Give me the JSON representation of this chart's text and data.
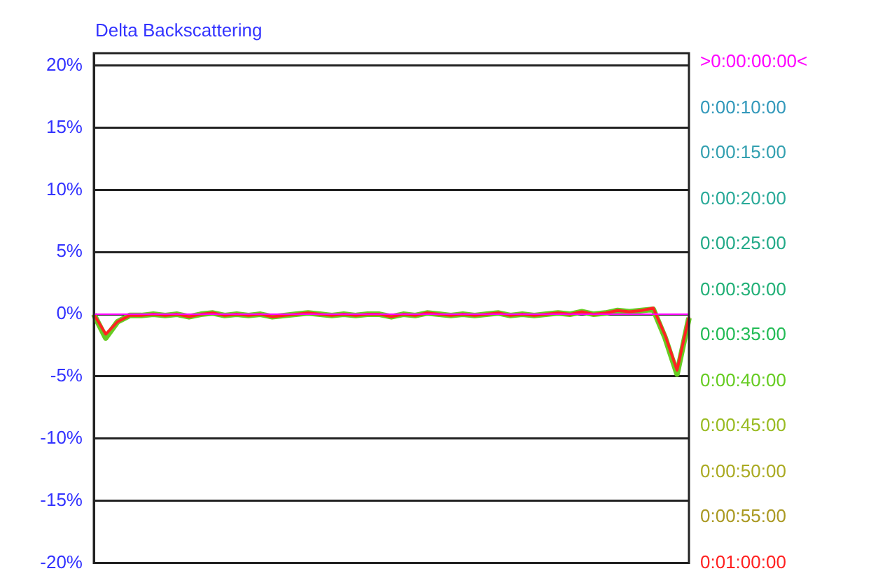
{
  "chart_data": {
    "type": "line",
    "title": "Delta Backscattering",
    "categories": [
      null,
      null,
      null,
      null,
      null,
      null,
      null,
      null,
      null,
      null,
      null,
      null,
      null,
      null,
      null,
      null,
      null,
      null,
      null,
      null,
      null,
      null,
      null,
      null,
      null,
      null,
      null,
      null,
      null,
      null,
      null,
      null,
      null,
      null,
      null,
      null,
      null,
      null,
      null,
      null,
      null,
      null,
      null,
      null,
      null,
      null,
      null,
      null,
      null,
      null,
      null
    ],
    "ylim": [
      -20,
      21
    ],
    "yticks": [
      {
        "value": -20,
        "label": "-20%"
      },
      {
        "value": -15,
        "label": "-15%"
      },
      {
        "value": -10,
        "label": "-10%"
      },
      {
        "value": -5,
        "label": "-5%"
      },
      {
        "value": 0,
        "label": "0%"
      },
      {
        "value": 5,
        "label": "5%"
      },
      {
        "value": 10,
        "label": "10%"
      },
      {
        "value": 15,
        "label": "15%"
      },
      {
        "value": 20,
        "label": "20%"
      }
    ],
    "grid": "y",
    "legend": "right",
    "tick_labels": "y",
    "marker": "none",
    "line_style": "solid",
    "series": [
      {
        "name": ">0:00:00:00<",
        "color": "#ff00ff",
        "values": [
          0,
          0,
          0,
          0,
          0,
          0,
          0,
          0,
          0,
          0,
          0,
          0,
          0,
          0,
          0,
          0,
          0,
          0,
          0,
          0,
          0,
          0,
          0,
          0,
          0,
          0,
          0,
          0,
          0,
          0,
          0,
          0,
          0,
          0,
          0,
          0,
          0,
          0,
          0,
          0,
          0,
          0,
          0,
          0,
          0,
          0,
          0,
          0,
          0,
          0,
          0
        ]
      },
      {
        "name": "0:00:10:00",
        "color": "#3399bb",
        "values": [
          null,
          null,
          null,
          null,
          null,
          null,
          null,
          null,
          null,
          null,
          null,
          null,
          null,
          null,
          null,
          null,
          null,
          null,
          null,
          null,
          null,
          null,
          null,
          null,
          null,
          null,
          null,
          null,
          null,
          null,
          null,
          null,
          null,
          null,
          null,
          null,
          null,
          null,
          null,
          null,
          null,
          null,
          null,
          null,
          null,
          null,
          null,
          null,
          null,
          null,
          null
        ]
      },
      {
        "name": "0:00:15:00",
        "color": "#33a0b0",
        "values": [
          null,
          null,
          null,
          null,
          null,
          null,
          null,
          null,
          null,
          null,
          null,
          null,
          null,
          null,
          null,
          null,
          null,
          null,
          null,
          null,
          null,
          null,
          null,
          null,
          null,
          null,
          null,
          null,
          null,
          null,
          null,
          null,
          null,
          null,
          null,
          null,
          null,
          null,
          null,
          null,
          null,
          null,
          null,
          null,
          null,
          null,
          null,
          null,
          null,
          null,
          null
        ]
      },
      {
        "name": "0:00:20:00",
        "color": "#2aaa99",
        "values": [
          null,
          null,
          null,
          null,
          null,
          null,
          null,
          null,
          null,
          null,
          null,
          null,
          null,
          null,
          null,
          null,
          null,
          null,
          null,
          null,
          null,
          null,
          null,
          null,
          null,
          null,
          null,
          null,
          null,
          null,
          null,
          null,
          null,
          null,
          null,
          null,
          null,
          null,
          null,
          null,
          null,
          null,
          null,
          null,
          null,
          null,
          null,
          null,
          null,
          null,
          null
        ]
      },
      {
        "name": "0:00:25:00",
        "color": "#22aa88",
        "values": [
          null,
          null,
          null,
          null,
          null,
          null,
          null,
          null,
          null,
          null,
          null,
          null,
          null,
          null,
          null,
          null,
          null,
          null,
          null,
          null,
          null,
          null,
          null,
          null,
          null,
          null,
          null,
          null,
          null,
          null,
          null,
          null,
          null,
          null,
          null,
          null,
          null,
          null,
          null,
          null,
          null,
          null,
          null,
          null,
          null,
          null,
          null,
          null,
          null,
          null,
          null
        ]
      },
      {
        "name": "0:00:30:00",
        "color": "#22b077",
        "values": [
          null,
          null,
          null,
          null,
          null,
          null,
          null,
          null,
          null,
          null,
          null,
          null,
          null,
          null,
          null,
          null,
          null,
          null,
          null,
          null,
          null,
          null,
          null,
          null,
          null,
          null,
          null,
          null,
          null,
          null,
          null,
          null,
          null,
          null,
          null,
          null,
          null,
          null,
          null,
          null,
          null,
          null,
          null,
          null,
          null,
          null,
          null,
          null,
          null,
          null,
          null
        ]
      },
      {
        "name": "0:00:35:00",
        "color": "#22bb55",
        "values": [
          null,
          null,
          null,
          null,
          null,
          null,
          null,
          null,
          null,
          null,
          null,
          null,
          null,
          null,
          null,
          null,
          null,
          null,
          null,
          null,
          null,
          null,
          null,
          null,
          null,
          null,
          null,
          null,
          null,
          null,
          null,
          null,
          null,
          null,
          null,
          null,
          null,
          null,
          null,
          null,
          null,
          null,
          null,
          null,
          null,
          null,
          null,
          null,
          null,
          null,
          null
        ]
      },
      {
        "name": "0:00:40:00",
        "color": "#66cc22",
        "values": [
          0,
          -1.9,
          -0.6,
          -0.1,
          -0.1,
          0,
          -0.1,
          0,
          -0.2,
          0,
          0.1,
          -0.1,
          0,
          -0.1,
          0,
          -0.2,
          -0.1,
          0,
          0.1,
          0,
          -0.1,
          0,
          -0.1,
          0,
          0,
          -0.2,
          0,
          -0.1,
          0.1,
          0,
          -0.1,
          0,
          -0.1,
          0,
          0.1,
          -0.1,
          0,
          -0.1,
          0,
          0.1,
          0,
          0.2,
          0,
          0.1,
          0.3,
          0.2,
          0.3,
          0.4,
          -1.9,
          -4.8,
          -0.3
        ]
      },
      {
        "name": "0:00:45:00",
        "color": "#99bb22",
        "values": [
          null,
          null,
          null,
          null,
          null,
          null,
          null,
          null,
          null,
          null,
          null,
          null,
          null,
          null,
          null,
          null,
          null,
          null,
          null,
          null,
          null,
          null,
          null,
          null,
          null,
          null,
          null,
          null,
          null,
          null,
          null,
          null,
          null,
          null,
          null,
          null,
          null,
          null,
          null,
          null,
          null,
          null,
          null,
          null,
          null,
          null,
          null,
          null,
          null,
          null,
          null
        ]
      },
      {
        "name": "0:00:50:00",
        "color": "#aaaa22",
        "values": [
          null,
          null,
          null,
          null,
          null,
          null,
          null,
          null,
          null,
          null,
          null,
          null,
          null,
          null,
          null,
          null,
          null,
          null,
          null,
          null,
          null,
          null,
          null,
          null,
          null,
          null,
          null,
          null,
          null,
          null,
          null,
          null,
          null,
          null,
          null,
          null,
          null,
          null,
          null,
          null,
          null,
          null,
          null,
          null,
          null,
          null,
          null,
          null,
          null,
          null,
          null
        ]
      },
      {
        "name": "0:00:55:00",
        "color": "#aa9922",
        "values": [
          null,
          null,
          null,
          null,
          null,
          null,
          null,
          null,
          null,
          null,
          null,
          null,
          null,
          null,
          null,
          null,
          null,
          null,
          null,
          null,
          null,
          null,
          null,
          null,
          null,
          null,
          null,
          null,
          null,
          null,
          null,
          null,
          null,
          null,
          null,
          null,
          null,
          null,
          null,
          null,
          null,
          null,
          null,
          null,
          null,
          null,
          null,
          null,
          null,
          null,
          null
        ]
      },
      {
        "name": "0:01:00:00",
        "color": "#ff2222",
        "values": [
          0,
          -1.6,
          -0.6,
          -0.1,
          -0.1,
          0,
          -0.1,
          0,
          -0.2,
          0,
          0.1,
          -0.1,
          0,
          -0.1,
          0,
          -0.2,
          -0.1,
          0,
          0.1,
          0,
          -0.1,
          0,
          -0.1,
          0,
          0,
          -0.2,
          0,
          -0.1,
          0.1,
          0,
          -0.1,
          0,
          -0.1,
          0,
          0.1,
          -0.1,
          0,
          -0.1,
          0,
          0.1,
          0,
          0.2,
          0,
          0.1,
          0.3,
          0.2,
          0.3,
          0.5,
          -1.7,
          -4.5,
          -0.2
        ]
      }
    ]
  }
}
